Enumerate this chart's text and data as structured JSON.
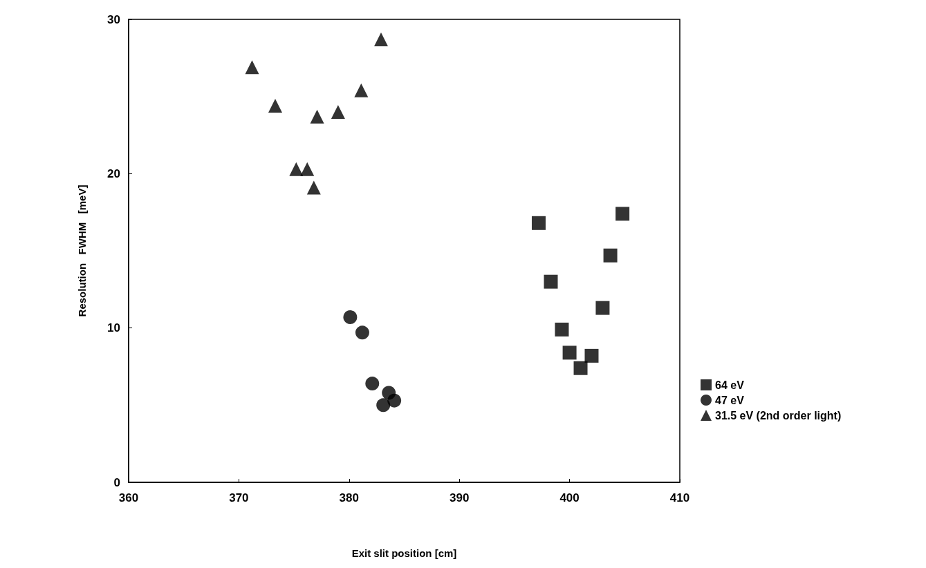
{
  "chart_data": {
    "type": "scatter",
    "xlabel": "Exit slit position [cm]",
    "ylabel": "Resolution   FWHM   [meV]",
    "xlim": [
      360,
      410
    ],
    "xticks": [
      360,
      370,
      380,
      390,
      400,
      410
    ],
    "ylim": [
      0,
      30
    ],
    "yticks": [
      0,
      10,
      20,
      30
    ],
    "grid": false,
    "legend": "bottom right",
    "series": [
      {
        "name": "64 eV",
        "color": "#000000",
        "marker": "square",
        "x": [
          397.2,
          398.3,
          399.3,
          400.0,
          401.0,
          402.0,
          403.0,
          403.7,
          404.8
        ],
        "values": [
          16.8,
          13.0,
          9.9,
          8.4,
          7.4,
          8.2,
          11.3,
          14.7,
          17.4
        ]
      },
      {
        "name": "47 eV",
        "color": "#000000",
        "marker": "circle",
        "x": [
          380.1,
          381.2,
          382.1,
          383.1,
          383.6,
          384.1
        ],
        "values": [
          10.7,
          9.7,
          6.4,
          5.0,
          5.8,
          5.3
        ]
      },
      {
        "name": "31.5 eV (2nd order light)",
        "color": "#000000",
        "marker": "triangle",
        "x": [
          371.2,
          373.3,
          375.2,
          376.2,
          376.8,
          377.1,
          379.0,
          381.1,
          382.9
        ],
        "values": [
          26.9,
          24.4,
          20.3,
          20.3,
          19.1,
          23.7,
          24.0,
          25.4,
          28.7
        ]
      }
    ]
  }
}
